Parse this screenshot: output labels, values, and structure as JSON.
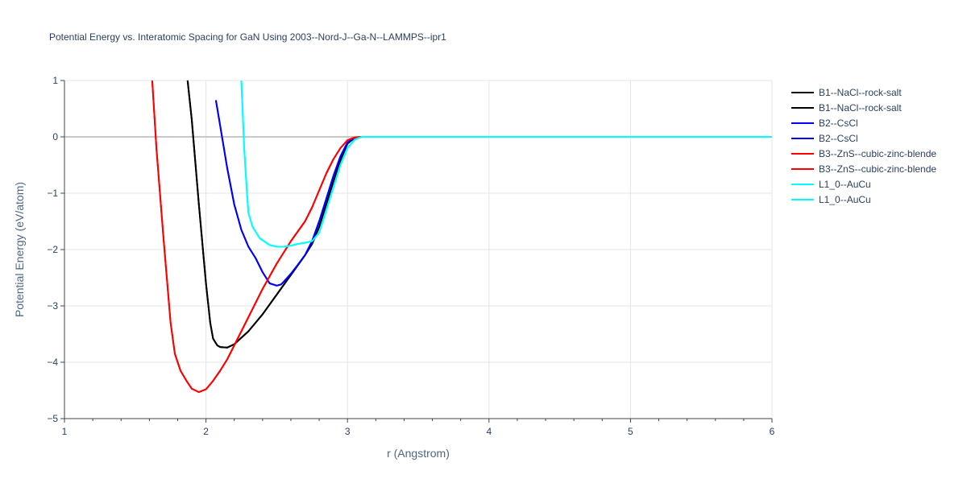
{
  "chart_data": {
    "type": "line",
    "title": "Potential Energy vs. Interatomic Spacing for GaN Using 2003--Nord-J--Ga-N--LAMMPS--ipr1",
    "xlabel": "r (Angstrom)",
    "ylabel": "Potential Energy (eV/atom)",
    "xlim": [
      1,
      6
    ],
    "ylim": [
      -5,
      1
    ],
    "xticks": [
      1,
      2,
      3,
      4,
      5,
      6
    ],
    "yticks": [
      1,
      0,
      -1,
      -2,
      -3,
      -4,
      -5
    ],
    "ytick_labels": [
      "1",
      "0",
      "−1",
      "−2",
      "−3",
      "−4",
      "−5"
    ],
    "grid": true,
    "legend_position": "right",
    "series": [
      {
        "name": "B1--NaCl--rock-salt",
        "color": "#000000",
        "x": [
          1.87,
          1.9,
          1.95,
          2.0,
          2.03,
          2.05,
          2.08,
          2.1,
          2.15,
          2.2,
          2.3,
          2.4,
          2.5,
          2.6,
          2.7,
          2.75,
          2.8,
          2.85,
          2.9,
          2.95,
          3.0,
          3.05,
          3.1,
          3.2,
          4.0,
          5.0,
          6.0
        ],
        "y": [
          1.0,
          0.3,
          -1.2,
          -2.6,
          -3.3,
          -3.58,
          -3.7,
          -3.73,
          -3.74,
          -3.68,
          -3.45,
          -3.15,
          -2.8,
          -2.45,
          -2.1,
          -1.9,
          -1.6,
          -1.2,
          -0.8,
          -0.42,
          -0.12,
          -0.02,
          0.0,
          0.0,
          0.0,
          0.0,
          0.0
        ]
      },
      {
        "name": "B1--NaCl--rock-salt",
        "color": "#000000",
        "x": [
          1.87,
          1.9,
          1.95,
          2.0,
          2.03,
          2.05,
          2.08,
          2.1,
          2.15,
          2.2,
          2.3,
          2.4,
          2.5,
          2.6,
          2.7,
          2.75,
          2.8,
          2.85,
          2.9,
          2.95,
          3.0,
          3.05,
          3.1,
          3.2,
          4.0,
          5.0,
          6.0
        ],
        "y": [
          1.0,
          0.3,
          -1.2,
          -2.6,
          -3.3,
          -3.58,
          -3.7,
          -3.73,
          -3.74,
          -3.68,
          -3.45,
          -3.15,
          -2.8,
          -2.45,
          -2.1,
          -1.9,
          -1.6,
          -1.2,
          -0.8,
          -0.42,
          -0.12,
          -0.02,
          0.0,
          0.0,
          0.0,
          0.0,
          0.0
        ]
      },
      {
        "name": "B2--CsCl",
        "color": "#0000ff",
        "x": [
          2.07,
          2.1,
          2.15,
          2.2,
          2.25,
          2.3,
          2.35,
          2.4,
          2.45,
          2.5,
          2.53,
          2.55,
          2.6,
          2.65,
          2.7,
          2.75,
          2.8,
          2.85,
          2.9,
          2.95,
          3.0,
          3.05,
          3.1,
          3.2,
          4.0,
          5.0,
          6.0
        ],
        "y": [
          0.65,
          0.2,
          -0.55,
          -1.2,
          -1.65,
          -1.95,
          -2.15,
          -2.4,
          -2.6,
          -2.64,
          -2.62,
          -2.57,
          -2.43,
          -2.27,
          -2.1,
          -1.85,
          -1.5,
          -1.1,
          -0.7,
          -0.35,
          -0.1,
          -0.02,
          0.0,
          0.0,
          0.0,
          0.0,
          0.0
        ]
      },
      {
        "name": "B2--CsCl",
        "color": "#0000ff",
        "x": [
          2.07,
          2.1,
          2.15,
          2.2,
          2.25,
          2.3,
          2.35,
          2.4,
          2.45,
          2.5,
          2.53,
          2.55,
          2.6,
          2.65,
          2.7,
          2.75,
          2.8,
          2.85,
          2.9,
          2.95,
          3.0,
          3.05,
          3.1,
          3.2,
          4.0,
          5.0,
          6.0
        ],
        "y": [
          0.65,
          0.2,
          -0.55,
          -1.2,
          -1.65,
          -1.95,
          -2.15,
          -2.4,
          -2.6,
          -2.64,
          -2.62,
          -2.57,
          -2.43,
          -2.27,
          -2.1,
          -1.85,
          -1.5,
          -1.1,
          -0.7,
          -0.35,
          -0.1,
          -0.02,
          0.0,
          0.0,
          0.0,
          0.0,
          0.0
        ]
      },
      {
        "name": "B3--ZnS--cubic-zinc-blende",
        "color": "#ff0000",
        "x": [
          1.62,
          1.65,
          1.7,
          1.75,
          1.78,
          1.82,
          1.86,
          1.9,
          1.95,
          2.0,
          2.05,
          2.1,
          2.15,
          2.2,
          2.3,
          2.4,
          2.5,
          2.6,
          2.7,
          2.75,
          2.8,
          2.85,
          2.9,
          2.95,
          3.0,
          3.05,
          3.1,
          3.2,
          4.0,
          5.0,
          6.0
        ],
        "y": [
          1.0,
          -0.2,
          -1.8,
          -3.3,
          -3.85,
          -4.15,
          -4.32,
          -4.47,
          -4.53,
          -4.48,
          -4.33,
          -4.15,
          -3.95,
          -3.7,
          -3.2,
          -2.7,
          -2.25,
          -1.85,
          -1.5,
          -1.25,
          -0.95,
          -0.65,
          -0.4,
          -0.2,
          -0.06,
          -0.01,
          0.0,
          0.0,
          0.0,
          0.0,
          0.0
        ]
      },
      {
        "name": "B3--ZnS--cubic-zinc-blende",
        "color": "#ff0000",
        "x": [
          1.62,
          1.65,
          1.7,
          1.75,
          1.78,
          1.82,
          1.86,
          1.9,
          1.95,
          2.0,
          2.05,
          2.1,
          2.15,
          2.2,
          2.3,
          2.4,
          2.5,
          2.6,
          2.7,
          2.75,
          2.8,
          2.85,
          2.9,
          2.95,
          3.0,
          3.05,
          3.1,
          3.2,
          4.0,
          5.0,
          6.0
        ],
        "y": [
          1.0,
          -0.2,
          -1.8,
          -3.3,
          -3.85,
          -4.15,
          -4.32,
          -4.47,
          -4.53,
          -4.48,
          -4.33,
          -4.15,
          -3.95,
          -3.7,
          -3.2,
          -2.7,
          -2.25,
          -1.85,
          -1.5,
          -1.25,
          -0.95,
          -0.65,
          -0.4,
          -0.2,
          -0.06,
          -0.01,
          0.0,
          0.0,
          0.0,
          0.0,
          0.0
        ]
      },
      {
        "name": "L1_0--AuCu",
        "color": "#00ffff",
        "x": [
          2.25,
          2.27,
          2.29,
          2.3,
          2.33,
          2.38,
          2.45,
          2.5,
          2.55,
          2.6,
          2.65,
          2.7,
          2.75,
          2.8,
          2.85,
          2.9,
          2.95,
          3.0,
          3.05,
          3.1,
          3.2,
          4.0,
          5.0,
          6.0
        ],
        "y": [
          1.0,
          -0.2,
          -1.0,
          -1.35,
          -1.6,
          -1.8,
          -1.92,
          -1.95,
          -1.95,
          -1.93,
          -1.9,
          -1.88,
          -1.85,
          -1.7,
          -1.3,
          -0.9,
          -0.5,
          -0.2,
          -0.05,
          0.0,
          0.0,
          0.0,
          0.0,
          0.0
        ]
      },
      {
        "name": "L1_0--AuCu",
        "color": "#00ffff",
        "x": [
          2.25,
          2.27,
          2.29,
          2.3,
          2.33,
          2.38,
          2.45,
          2.5,
          2.55,
          2.6,
          2.65,
          2.7,
          2.75,
          2.8,
          2.85,
          2.9,
          2.95,
          3.0,
          3.05,
          3.1,
          3.2,
          4.0,
          5.0,
          6.0
        ],
        "y": [
          1.0,
          -0.2,
          -1.0,
          -1.35,
          -1.6,
          -1.8,
          -1.92,
          -1.95,
          -1.95,
          -1.93,
          -1.9,
          -1.88,
          -1.85,
          -1.7,
          -1.3,
          -0.9,
          -0.5,
          -0.2,
          -0.05,
          0.0,
          0.0,
          0.0,
          0.0,
          0.0
        ]
      }
    ]
  }
}
